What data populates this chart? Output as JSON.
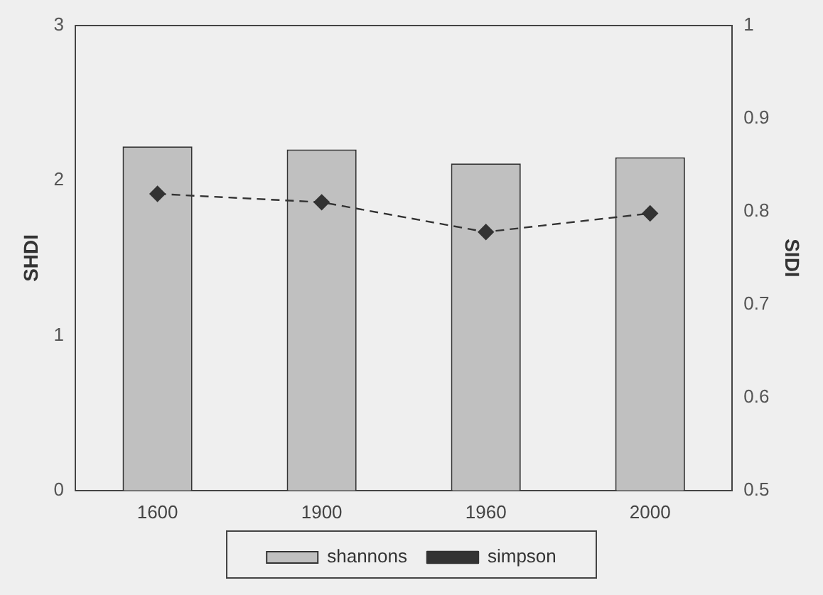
{
  "chart_data": {
    "type": "bar",
    "categories": [
      "1600",
      "1900",
      "1960",
      "2000"
    ],
    "ylabel": "SHDI",
    "y2label": "SIDI",
    "series": [
      {
        "name": "shannons",
        "color": "#c0c0c0",
        "values": [
          2.22,
          2.2,
          2.11,
          2.15
        ]
      },
      {
        "name": "simpson",
        "type": "line",
        "axis": "y2",
        "color": "#333333",
        "values": [
          0.819,
          0.81,
          0.778,
          0.798
        ],
        "marker": "diamond",
        "line_style": "dashed"
      }
    ],
    "ylim": [
      0,
      3
    ],
    "yticks": [
      0,
      1,
      2,
      3
    ],
    "y2lim": [
      0.5,
      1
    ],
    "y2ticks": [
      0.5,
      0.6,
      0.7,
      0.8,
      0.9,
      1
    ],
    "grid": false,
    "legend": "bottom"
  }
}
